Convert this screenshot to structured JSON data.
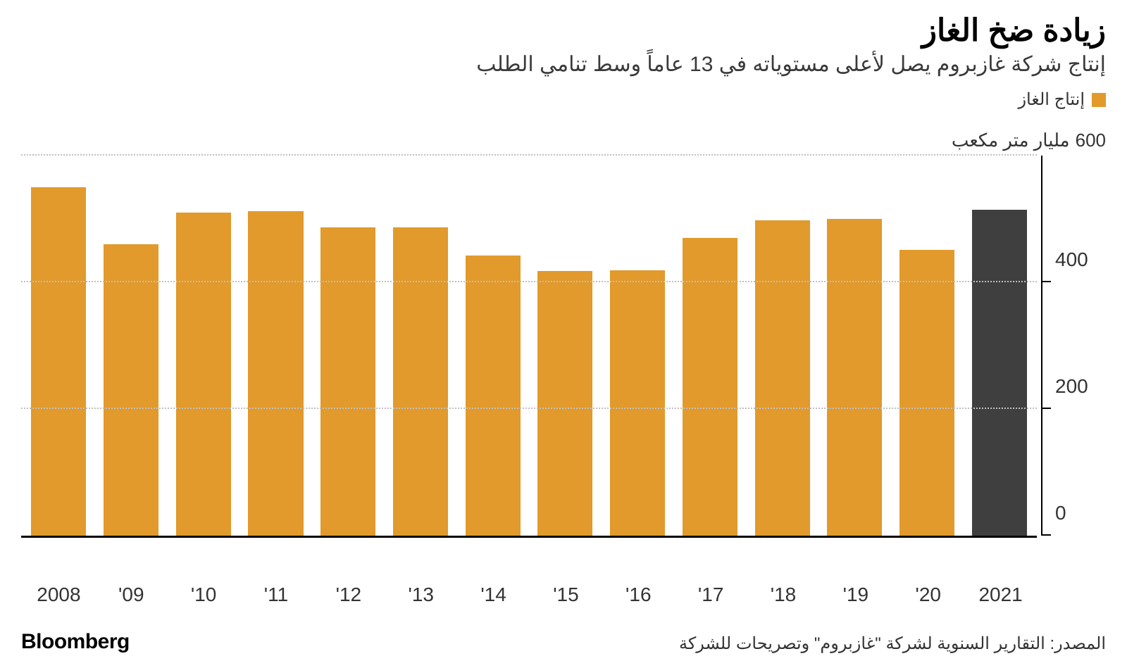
{
  "title": "زيادة ضخ الغاز",
  "title_fontsize": 44,
  "title_fontweight": 800,
  "subtitle": "إنتاج شركة غازبروم يصل لأعلى مستوياته في 13 عاماً وسط تنامي الطلب",
  "subtitle_fontsize": 30,
  "subtitle_color": "#3a3a3a",
  "legend": {
    "swatch_color": "#e19a2b",
    "label": "إنتاج الغاز",
    "fontsize": 24
  },
  "unit": {
    "value_label": "600",
    "text_label": "مليار متر مكعب",
    "fontsize": 26
  },
  "chart": {
    "type": "bar",
    "categories": [
      "2008",
      "'09",
      "'10",
      "'11",
      "'12",
      "'13",
      "'14",
      "'15",
      "'16",
      "'17",
      "'18",
      "'19",
      "'20",
      "2021"
    ],
    "values": [
      550,
      460,
      510,
      513,
      487,
      487,
      443,
      418,
      419,
      471,
      498,
      501,
      452,
      515
    ],
    "bar_colors": [
      "#e19a2b",
      "#e19a2b",
      "#e19a2b",
      "#e19a2b",
      "#e19a2b",
      "#e19a2b",
      "#e19a2b",
      "#e19a2b",
      "#e19a2b",
      "#e19a2b",
      "#e19a2b",
      "#e19a2b",
      "#e19a2b",
      "#3f3f3f"
    ],
    "ylim": [
      0,
      600
    ],
    "yticks": [
      0,
      200,
      400
    ],
    "ytick_labels": [
      "0",
      "200",
      "400"
    ],
    "grid_values": [
      200,
      400,
      600
    ],
    "grid_color": "#bfbfbf",
    "xlabel_fontsize": 28,
    "ylabel_fontsize": 28,
    "background_color": "#ffffff",
    "axis_color": "#000000",
    "bar_width": 0.76
  },
  "footer": {
    "brand": "Bloomberg",
    "brand_fontsize": 30,
    "source": "المصدر: التقارير السنوية لشركة \"غازبروم\" وتصريحات للشركة",
    "source_fontsize": 24
  }
}
